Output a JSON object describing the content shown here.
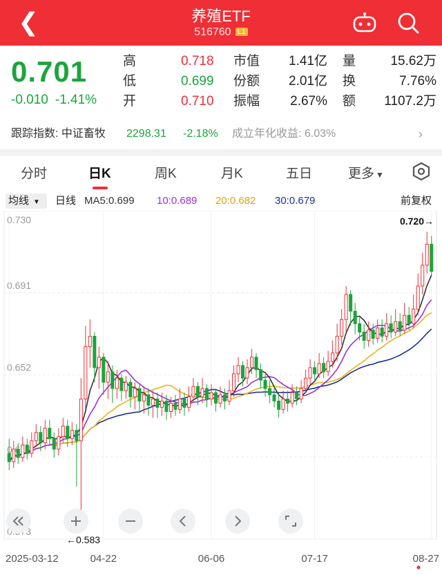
{
  "header": {
    "title": "养殖ETF",
    "code": "516760",
    "level": "L1"
  },
  "quote": {
    "price": "0.701",
    "change": "-0.010",
    "change_pct": "-1.41%",
    "high_label": "高",
    "high": "0.718",
    "low_label": "低",
    "low": "0.699",
    "open_label": "开",
    "open": "0.710",
    "mktcap_label": "市值",
    "mktcap": "1.41亿",
    "shares_label": "份额",
    "shares": "2.01亿",
    "amp_label": "振幅",
    "amp": "2.67%",
    "vol_label": "量",
    "vol": "15.62万",
    "turn_label": "换",
    "turn": "7.76%",
    "amt_label": "额",
    "amt": "1107.2万"
  },
  "tracker": {
    "label": "跟踪指数: 中证畜牧",
    "index_value": "2298.31",
    "index_change": "-2.18%",
    "annual": "成立年化收益: 6.03%"
  },
  "tabs": [
    "分时",
    "日K",
    "周K",
    "月K",
    "五日",
    "更多"
  ],
  "active_tab": 1,
  "ma_bar": {
    "selector": "均线",
    "period": "日线",
    "ma5": "MA5:0.699",
    "ma10": "10:0.689",
    "ma20": "20:0.682",
    "ma30": "30:0.679",
    "adjust": "前复权"
  },
  "colors": {
    "up": "#ef2e36",
    "down": "#1aa53c",
    "ma5": "#333333",
    "ma10": "#9b30d9",
    "ma20": "#e9b319",
    "ma30": "#1c2f8f"
  },
  "chart_data": {
    "type": "candlestick",
    "y_ticks": [
      "0.730",
      "0.691",
      "0.652",
      "0.612",
      "0.573"
    ],
    "ylim": [
      0.573,
      0.73
    ],
    "x_labels": [
      "2025-03-12",
      "04-22",
      "06-06",
      "07-17",
      "08-27"
    ],
    "max_label": "0.720→",
    "min_label": "←0.583",
    "candles": [
      [
        0.614,
        0.61,
        0.621,
        0.606
      ],
      [
        0.61,
        0.616,
        0.62,
        0.607
      ],
      [
        0.616,
        0.612,
        0.619,
        0.609
      ],
      [
        0.612,
        0.618,
        0.622,
        0.61
      ],
      [
        0.618,
        0.614,
        0.621,
        0.611
      ],
      [
        0.614,
        0.62,
        0.624,
        0.612
      ],
      [
        0.62,
        0.624,
        0.628,
        0.617
      ],
      [
        0.624,
        0.619,
        0.627,
        0.615
      ],
      [
        0.619,
        0.626,
        0.63,
        0.616
      ],
      [
        0.626,
        0.621,
        0.63,
        0.618
      ],
      [
        0.621,
        0.616,
        0.624,
        0.612
      ],
      [
        0.616,
        0.622,
        0.626,
        0.613
      ],
      [
        0.622,
        0.627,
        0.631,
        0.619
      ],
      [
        0.627,
        0.621,
        0.63,
        0.617
      ],
      [
        0.621,
        0.625,
        0.629,
        0.618
      ],
      [
        0.625,
        0.62,
        0.628,
        0.598
      ],
      [
        0.62,
        0.64,
        0.65,
        0.583
      ],
      [
        0.64,
        0.665,
        0.675,
        0.635
      ],
      [
        0.665,
        0.67,
        0.678,
        0.655
      ],
      [
        0.67,
        0.655,
        0.672,
        0.648
      ],
      [
        0.655,
        0.66,
        0.665,
        0.645
      ],
      [
        0.66,
        0.648,
        0.662,
        0.642
      ],
      [
        0.648,
        0.653,
        0.658,
        0.64
      ],
      [
        0.653,
        0.645,
        0.656,
        0.638
      ],
      [
        0.645,
        0.65,
        0.654,
        0.64
      ],
      [
        0.65,
        0.644,
        0.652,
        0.639
      ],
      [
        0.644,
        0.648,
        0.651,
        0.64
      ],
      [
        0.648,
        0.641,
        0.65,
        0.636
      ],
      [
        0.641,
        0.645,
        0.648,
        0.635
      ],
      [
        0.645,
        0.639,
        0.647,
        0.634
      ],
      [
        0.639,
        0.642,
        0.646,
        0.633
      ],
      [
        0.642,
        0.637,
        0.645,
        0.632
      ],
      [
        0.637,
        0.64,
        0.644,
        0.631
      ],
      [
        0.64,
        0.636,
        0.643,
        0.631
      ],
      [
        0.636,
        0.639,
        0.643,
        0.632
      ],
      [
        0.639,
        0.634,
        0.642,
        0.63
      ],
      [
        0.634,
        0.638,
        0.641,
        0.631
      ],
      [
        0.638,
        0.635,
        0.642,
        0.632
      ],
      [
        0.635,
        0.64,
        0.645,
        0.633
      ],
      [
        0.64,
        0.636,
        0.643,
        0.632
      ],
      [
        0.636,
        0.641,
        0.646,
        0.634
      ],
      [
        0.641,
        0.646,
        0.65,
        0.638
      ],
      [
        0.646,
        0.641,
        0.648,
        0.637
      ],
      [
        0.641,
        0.645,
        0.65,
        0.638
      ],
      [
        0.645,
        0.64,
        0.647,
        0.636
      ],
      [
        0.64,
        0.643,
        0.647,
        0.637
      ],
      [
        0.643,
        0.638,
        0.645,
        0.634
      ],
      [
        0.638,
        0.642,
        0.646,
        0.636
      ],
      [
        0.642,
        0.639,
        0.645,
        0.635
      ],
      [
        0.639,
        0.644,
        0.649,
        0.637
      ],
      [
        0.644,
        0.652,
        0.656,
        0.641
      ],
      [
        0.652,
        0.656,
        0.66,
        0.648
      ],
      [
        0.656,
        0.65,
        0.658,
        0.646
      ],
      [
        0.65,
        0.655,
        0.659,
        0.647
      ],
      [
        0.655,
        0.66,
        0.664,
        0.652
      ],
      [
        0.66,
        0.654,
        0.662,
        0.65
      ],
      [
        0.654,
        0.649,
        0.657,
        0.645
      ],
      [
        0.649,
        0.645,
        0.652,
        0.641
      ],
      [
        0.645,
        0.642,
        0.649,
        0.638
      ],
      [
        0.642,
        0.639,
        0.646,
        0.636
      ],
      [
        0.639,
        0.635,
        0.643,
        0.631
      ],
      [
        0.635,
        0.64,
        0.644,
        0.633
      ],
      [
        0.64,
        0.638,
        0.644,
        0.634
      ],
      [
        0.638,
        0.643,
        0.647,
        0.636
      ],
      [
        0.643,
        0.64,
        0.646,
        0.637
      ],
      [
        0.64,
        0.645,
        0.649,
        0.638
      ],
      [
        0.645,
        0.65,
        0.654,
        0.643
      ],
      [
        0.65,
        0.655,
        0.659,
        0.647
      ],
      [
        0.655,
        0.652,
        0.658,
        0.649
      ],
      [
        0.652,
        0.657,
        0.662,
        0.65
      ],
      [
        0.657,
        0.653,
        0.66,
        0.65
      ],
      [
        0.653,
        0.658,
        0.663,
        0.651
      ],
      [
        0.658,
        0.662,
        0.668,
        0.655
      ],
      [
        0.662,
        0.67,
        0.676,
        0.658
      ],
      [
        0.67,
        0.678,
        0.683,
        0.666
      ],
      [
        0.678,
        0.69,
        0.694,
        0.672
      ],
      [
        0.69,
        0.682,
        0.692,
        0.675
      ],
      [
        0.682,
        0.676,
        0.686,
        0.671
      ],
      [
        0.676,
        0.672,
        0.679,
        0.668
      ],
      [
        0.672,
        0.668,
        0.676,
        0.664
      ],
      [
        0.668,
        0.673,
        0.677,
        0.665
      ],
      [
        0.673,
        0.669,
        0.676,
        0.666
      ],
      [
        0.669,
        0.674,
        0.678,
        0.667
      ],
      [
        0.674,
        0.67,
        0.678,
        0.667
      ],
      [
        0.67,
        0.676,
        0.681,
        0.668
      ],
      [
        0.676,
        0.672,
        0.68,
        0.669
      ],
      [
        0.672,
        0.677,
        0.683,
        0.67
      ],
      [
        0.677,
        0.673,
        0.681,
        0.67
      ],
      [
        0.673,
        0.68,
        0.686,
        0.671
      ],
      [
        0.68,
        0.676,
        0.684,
        0.673
      ],
      [
        0.676,
        0.683,
        0.69,
        0.674
      ],
      [
        0.683,
        0.694,
        0.7,
        0.68
      ],
      [
        0.694,
        0.704,
        0.71,
        0.69
      ],
      [
        0.704,
        0.714,
        0.72,
        0.7
      ],
      [
        0.714,
        0.701,
        0.718,
        0.699
      ]
    ]
  },
  "controls": [
    "shrink-icon",
    "zoom-in-icon",
    "zoom-out-icon",
    "prev-icon",
    "next-icon",
    "fullscreen-icon"
  ]
}
